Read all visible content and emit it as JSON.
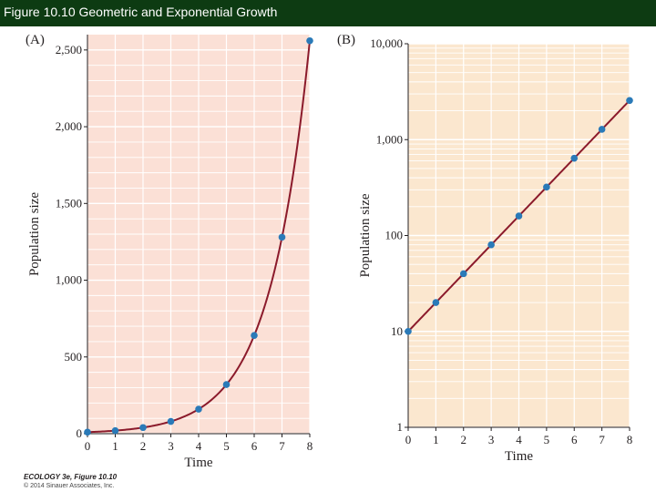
{
  "header": {
    "title": "Figure 10.10  Geometric and Exponential Growth"
  },
  "colors": {
    "header_bg": "#0d3b12",
    "panel_a_bg": "#fbe0d6",
    "panel_b_bg": "#fbe7cf",
    "line": "#8b1a2b",
    "point": "#2a7ab8",
    "grid": "#ffffff"
  },
  "chart_data": [
    {
      "type": "line",
      "panel_label": "(A)",
      "xlabel": "Time",
      "ylabel": "Population size",
      "x": [
        0,
        1,
        2,
        3,
        4,
        5,
        6,
        7,
        8
      ],
      "series": [
        {
          "values": [
            10,
            20,
            40,
            80,
            160,
            320,
            640,
            1280,
            2560
          ]
        }
      ],
      "xticks": [
        "0",
        "1",
        "2",
        "3",
        "4",
        "5",
        "6",
        "7",
        "8"
      ],
      "yticks": [
        "0",
        "500",
        "1,000",
        "1,500",
        "2,000",
        "2,500"
      ],
      "xlim": [
        0,
        8
      ],
      "ylim": [
        0,
        2600
      ],
      "yscale": "linear",
      "grid": true
    },
    {
      "type": "line",
      "panel_label": "(B)",
      "xlabel": "Time",
      "ylabel": "Population size",
      "x": [
        0,
        1,
        2,
        3,
        4,
        5,
        6,
        7,
        8
      ],
      "series": [
        {
          "values": [
            10,
            20,
            40,
            80,
            160,
            320,
            640,
            1280,
            2560
          ]
        }
      ],
      "xticks": [
        "0",
        "1",
        "2",
        "3",
        "4",
        "5",
        "6",
        "7",
        "8"
      ],
      "yticks": [
        "1",
        "10",
        "100",
        "1,000",
        "10,000"
      ],
      "xlim": [
        0,
        8
      ],
      "ylim": [
        1,
        10000
      ],
      "yscale": "log",
      "grid": true
    }
  ],
  "footer": {
    "book": "ECOLOGY 3e, Figure 10.10",
    "copyright": "© 2014 Sinauer Associates, Inc."
  }
}
